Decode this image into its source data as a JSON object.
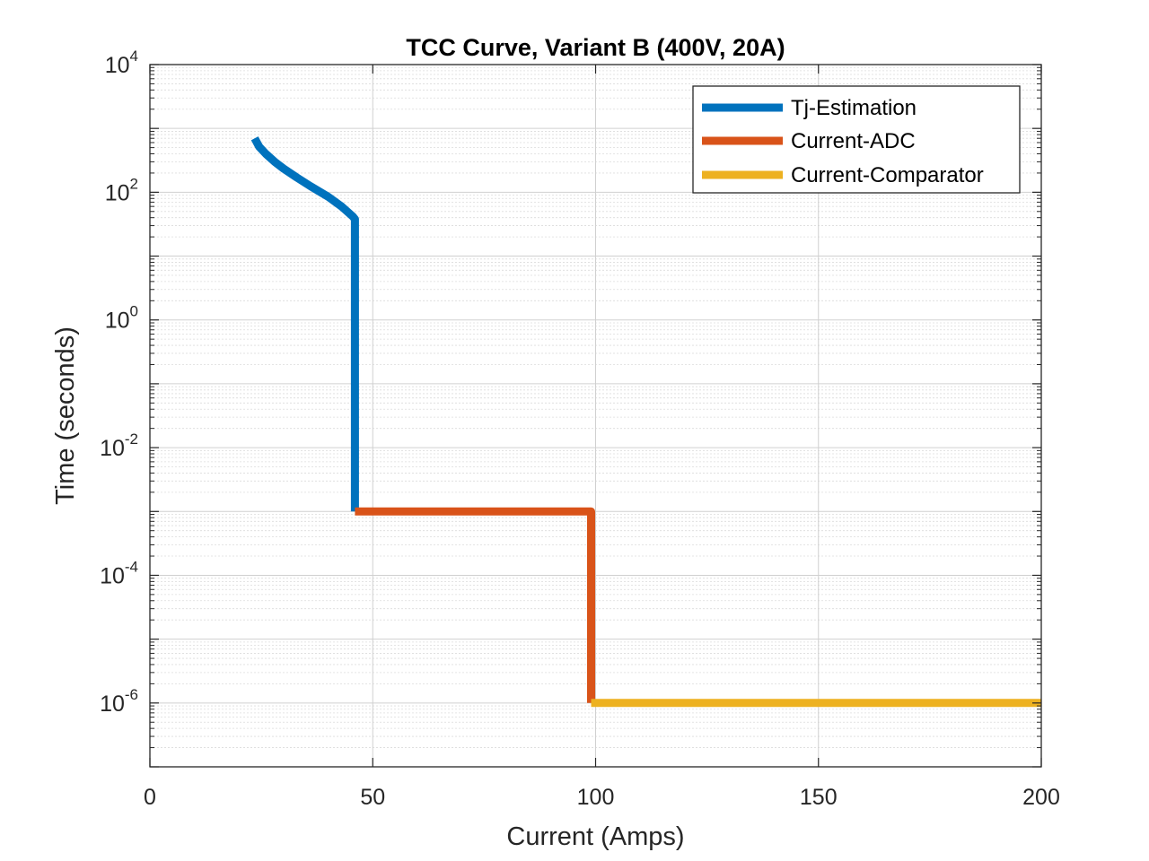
{
  "chart_data": {
    "type": "line",
    "title": "TCC Curve, Variant B (400V, 20A)",
    "xlabel": "Current (Amps)",
    "ylabel": "Time (seconds)",
    "xlim": [
      0,
      200
    ],
    "ylim": [
      1e-07,
      10000
    ],
    "yscale": "log",
    "grid": true,
    "minor_grid": true,
    "legend_position": "top-right",
    "x_ticks": [
      {
        "value": 0,
        "label": "0"
      },
      {
        "value": 50,
        "label": "50"
      },
      {
        "value": 100,
        "label": "100"
      },
      {
        "value": 150,
        "label": "150"
      },
      {
        "value": 200,
        "label": "200"
      }
    ],
    "y_ticks": [
      {
        "value": 1e-06,
        "base": "10",
        "exp": "-6"
      },
      {
        "value": 0.0001,
        "base": "10",
        "exp": "-4"
      },
      {
        "value": 0.01,
        "base": "10",
        "exp": "-2"
      },
      {
        "value": 1,
        "base": "10",
        "exp": "0"
      },
      {
        "value": 100,
        "base": "10",
        "exp": "2"
      },
      {
        "value": 10000,
        "base": "10",
        "exp": "4"
      }
    ],
    "series": [
      {
        "name": "Tj-Estimation",
        "color": "#0072BD",
        "points": [
          [
            23.5,
            700
          ],
          [
            24.5,
            520
          ],
          [
            26,
            400
          ],
          [
            28,
            300
          ],
          [
            30,
            235
          ],
          [
            33,
            170
          ],
          [
            36,
            125
          ],
          [
            40,
            85
          ],
          [
            43,
            60
          ],
          [
            45.5,
            42
          ],
          [
            46,
            38
          ],
          [
            46,
            0.001
          ]
        ]
      },
      {
        "name": "Current-ADC",
        "color": "#D95319",
        "points": [
          [
            46,
            0.001
          ],
          [
            99,
            0.001
          ],
          [
            99,
            1e-06
          ]
        ]
      },
      {
        "name": "Current-Comparator",
        "color": "#EDB120",
        "points": [
          [
            99,
            1e-06
          ],
          [
            200,
            1e-06
          ]
        ]
      }
    ]
  }
}
